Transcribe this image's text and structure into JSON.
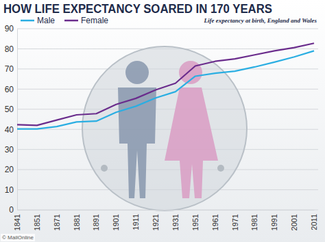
{
  "chart_data": {
    "type": "line",
    "title": "HOW LIFE EXPECTANCY SOARED IN 170 YEARS",
    "subtitle": "Life expectancy at birth, England and Wales",
    "annotations": [
      "© MailOnline"
    ],
    "categories": [
      "1841",
      "1851",
      "1871",
      "1881",
      "1891",
      "1901",
      "1911",
      "1921",
      "1931",
      "1951",
      "1961",
      "1971",
      "1981",
      "1991",
      "2001",
      "2011"
    ],
    "series": [
      {
        "name": "Male",
        "color": "#2aaee2",
        "values": [
          40.2,
          40.2,
          41.4,
          43.7,
          44.1,
          48.5,
          51.5,
          55.6,
          58.7,
          66.4,
          67.9,
          68.9,
          71.0,
          73.4,
          76.0,
          79.0
        ]
      },
      {
        "name": "Female",
        "color": "#6a2c8c",
        "values": [
          42.3,
          42.0,
          44.6,
          47.2,
          47.8,
          52.4,
          55.4,
          59.6,
          62.9,
          71.5,
          73.8,
          75.0,
          77.0,
          79.0,
          80.6,
          82.8
        ]
      }
    ],
    "ylim": [
      0,
      90
    ],
    "yticks": [
      0,
      10,
      20,
      30,
      40,
      50,
      60,
      70,
      80,
      90
    ],
    "grid": true,
    "legend": "top-left"
  }
}
